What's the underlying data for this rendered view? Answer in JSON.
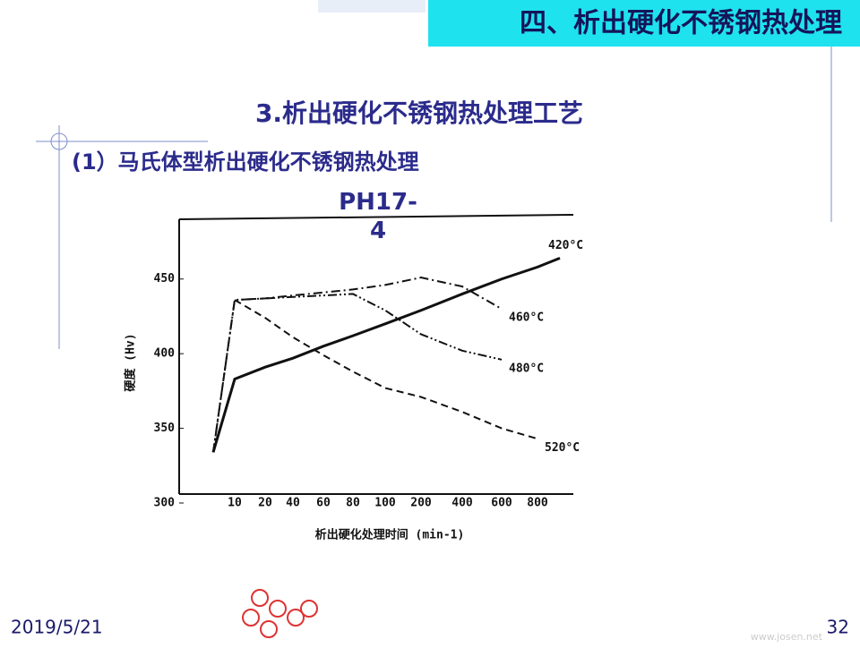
{
  "header": {
    "title": "四、析出硬化不锈钢热处理"
  },
  "heading": "3.析出硬化不锈钢热处理工艺",
  "subheading": "(1）马氏体型析出硬化不锈钢热处理",
  "footer": {
    "date": "2019/5/21",
    "page": "32",
    "watermark": "www.josen.net"
  },
  "chart_data": {
    "type": "line",
    "title": "PH17-4",
    "x_label": "析出硬化处理时间 (min-1)",
    "y_label": "硬度 (Hv)",
    "categories": [
      null,
      "10",
      "20",
      "40",
      "60",
      "80",
      "100",
      "200",
      "400",
      "600",
      "800",
      null
    ],
    "ylim": [
      300,
      490
    ],
    "yticks": [
      300,
      350,
      400,
      450
    ],
    "series": [
      {
        "name": "420°C",
        "color": "#111111",
        "dash": "solid",
        "values": [
          334,
          383,
          391,
          397,
          405,
          412,
          420,
          429,
          440,
          450,
          458,
          464
        ]
      },
      {
        "name": "460°C",
        "color": "#111111",
        "dash": "dash-dot",
        "values": [
          334,
          436,
          437,
          439,
          441,
          443,
          446,
          451,
          445,
          430,
          null,
          null
        ]
      },
      {
        "name": "480°C",
        "color": "#111111",
        "dash": "dash-dot-dot",
        "values": [
          334,
          436,
          437,
          438,
          439,
          440,
          429,
          413,
          402,
          396,
          null,
          null
        ]
      },
      {
        "name": "520°C",
        "color": "#111111",
        "dash": "dashed",
        "values": [
          null,
          436,
          424,
          411,
          399,
          388,
          377,
          371,
          361,
          350,
          343,
          null
        ]
      }
    ]
  }
}
